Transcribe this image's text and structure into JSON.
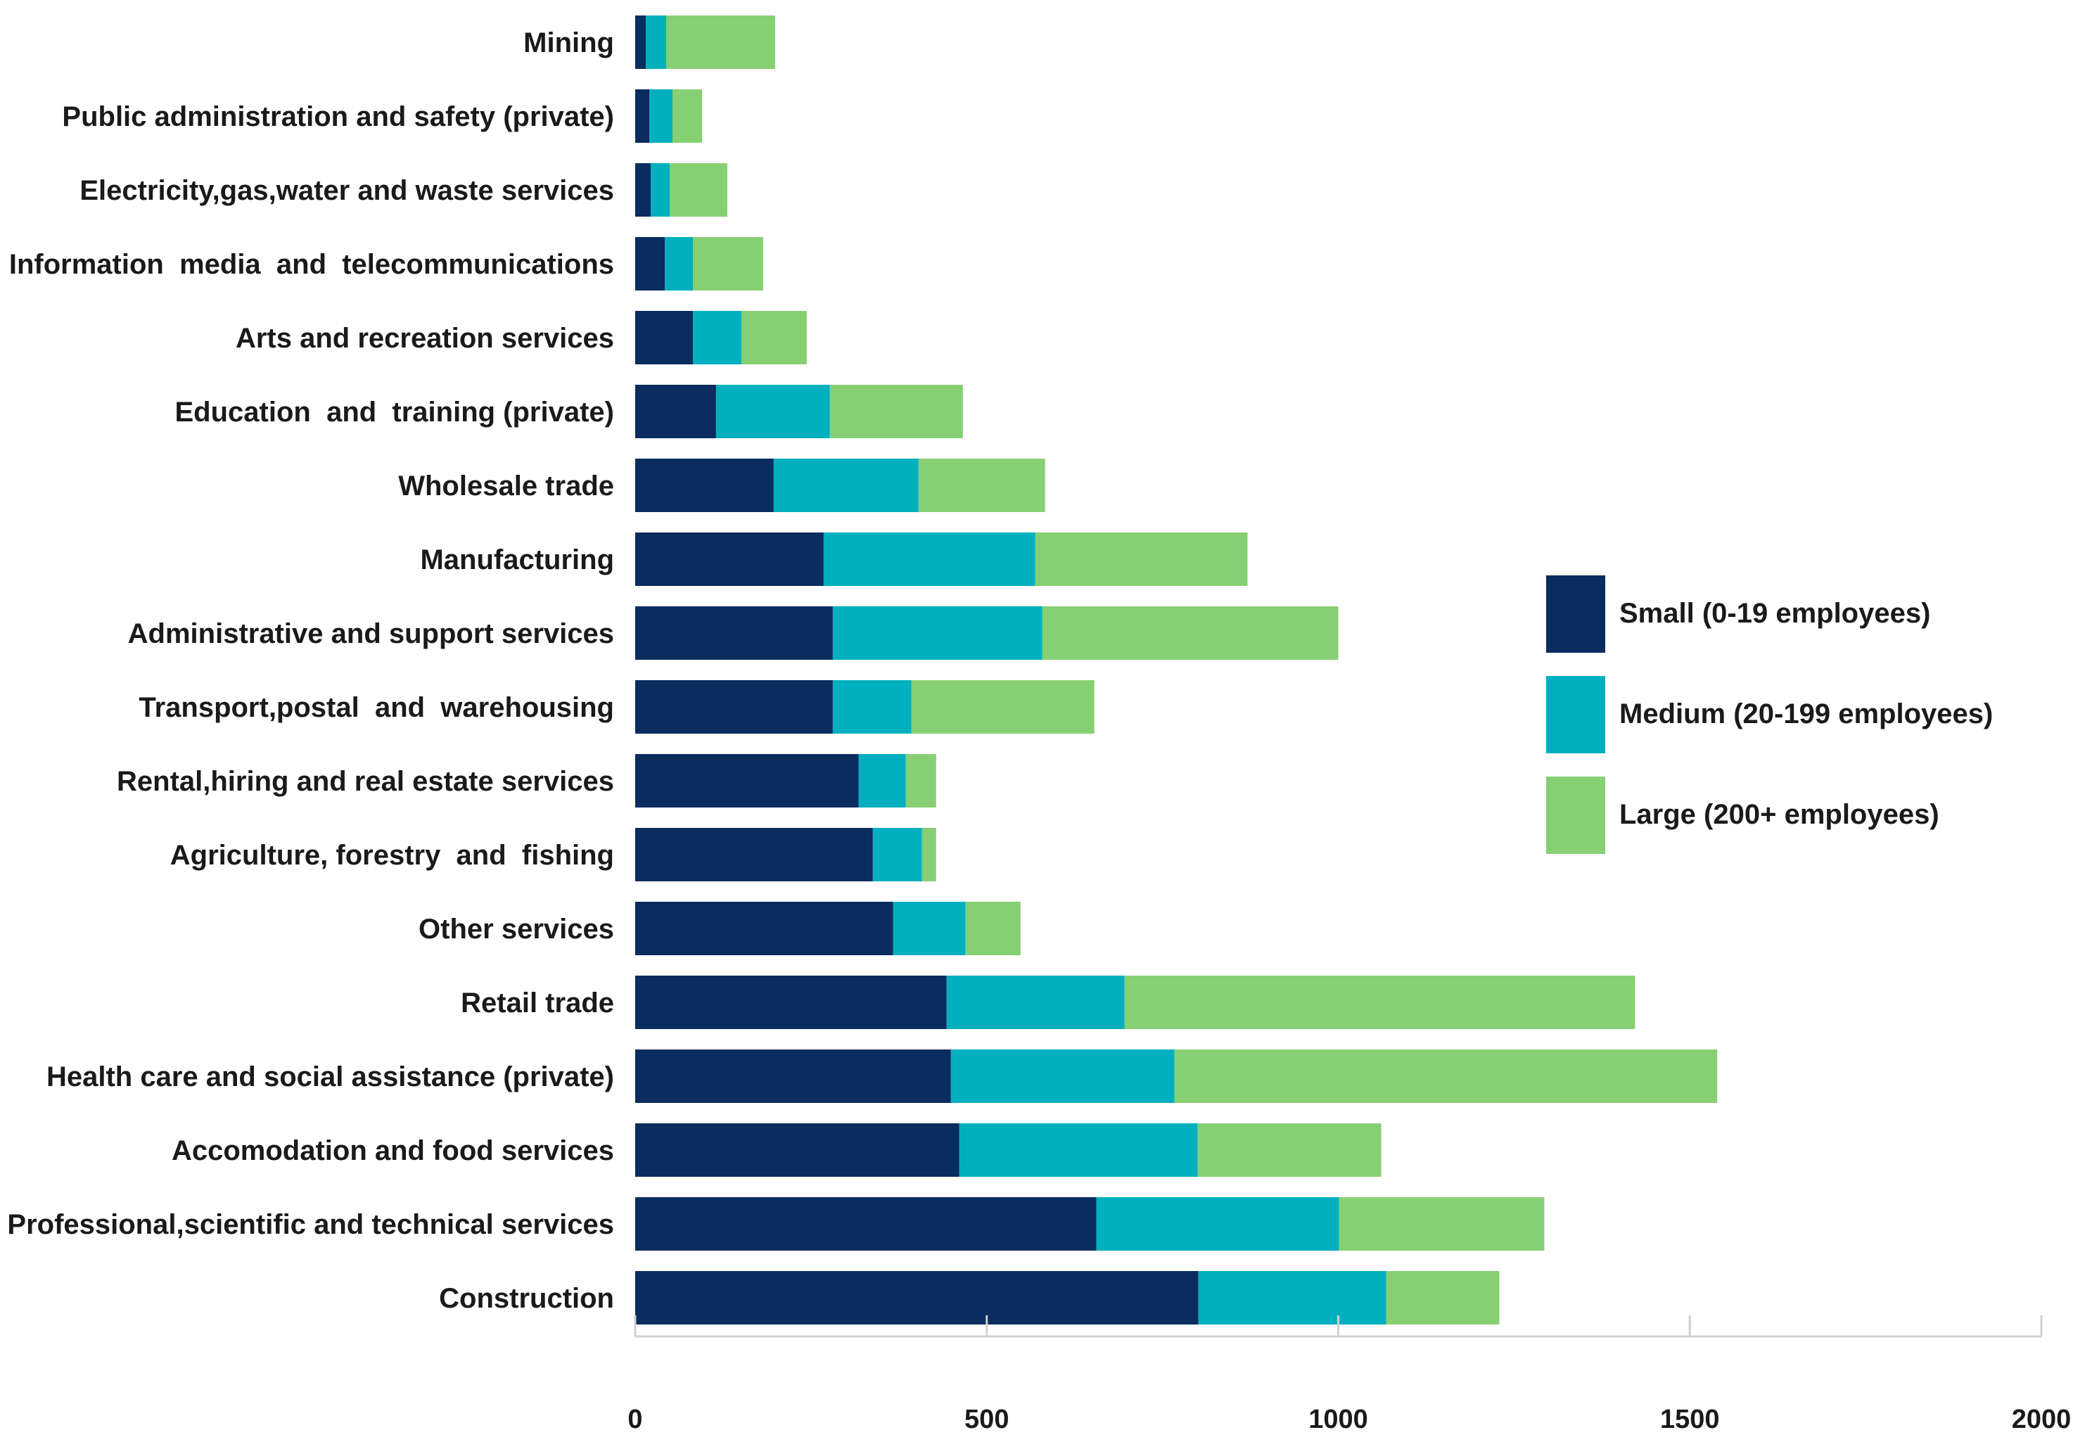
{
  "chart_data": {
    "type": "bar",
    "orientation": "horizontal",
    "stacked": true,
    "title": "",
    "xlabel": "",
    "ylabel": "",
    "xlim": [
      0,
      2000
    ],
    "xticks": [
      0,
      500,
      1000,
      1500,
      2000
    ],
    "grid": false,
    "legend_position": "right",
    "categories": [
      "Mining",
      "Public administration and safety (private)",
      "Electricity,gas,water and waste services",
      "Information  media  and  telecommunications",
      "Arts and recreation services",
      "Education  and  training (private)",
      "Wholesale trade",
      "Manufacturing",
      "Administrative and support services",
      "Transport,postal  and  warehousing",
      "Rental,hiring and real estate services",
      "Agriculture, forestry  and  fishing",
      "Other services",
      "Retail trade",
      "Health care and social assistance (private)",
      "Accomodation and food services",
      "Professional,scientific and technical services",
      "Construction"
    ],
    "series": [
      {
        "name": "Small (0-19 employees)",
        "color": "#0a2c5e",
        "values": [
          15,
          20,
          22,
          42,
          82,
          115,
          197,
          268,
          281,
          281,
          318,
          338,
          367,
          443,
          449,
          461,
          656,
          801
        ]
      },
      {
        "name": "Medium (20-199 employees)",
        "color": "#00b0bf",
        "values": [
          29,
          33,
          27,
          40,
          69,
          162,
          206,
          301,
          298,
          112,
          67,
          70,
          103,
          253,
          318,
          339,
          345,
          267
        ]
      },
      {
        "name": "Large (200+ employees)",
        "color": "#87cf73",
        "values": [
          155,
          42,
          82,
          100,
          93,
          189,
          180,
          302,
          421,
          260,
          43,
          20,
          78,
          726,
          772,
          261,
          292,
          161
        ]
      }
    ]
  }
}
